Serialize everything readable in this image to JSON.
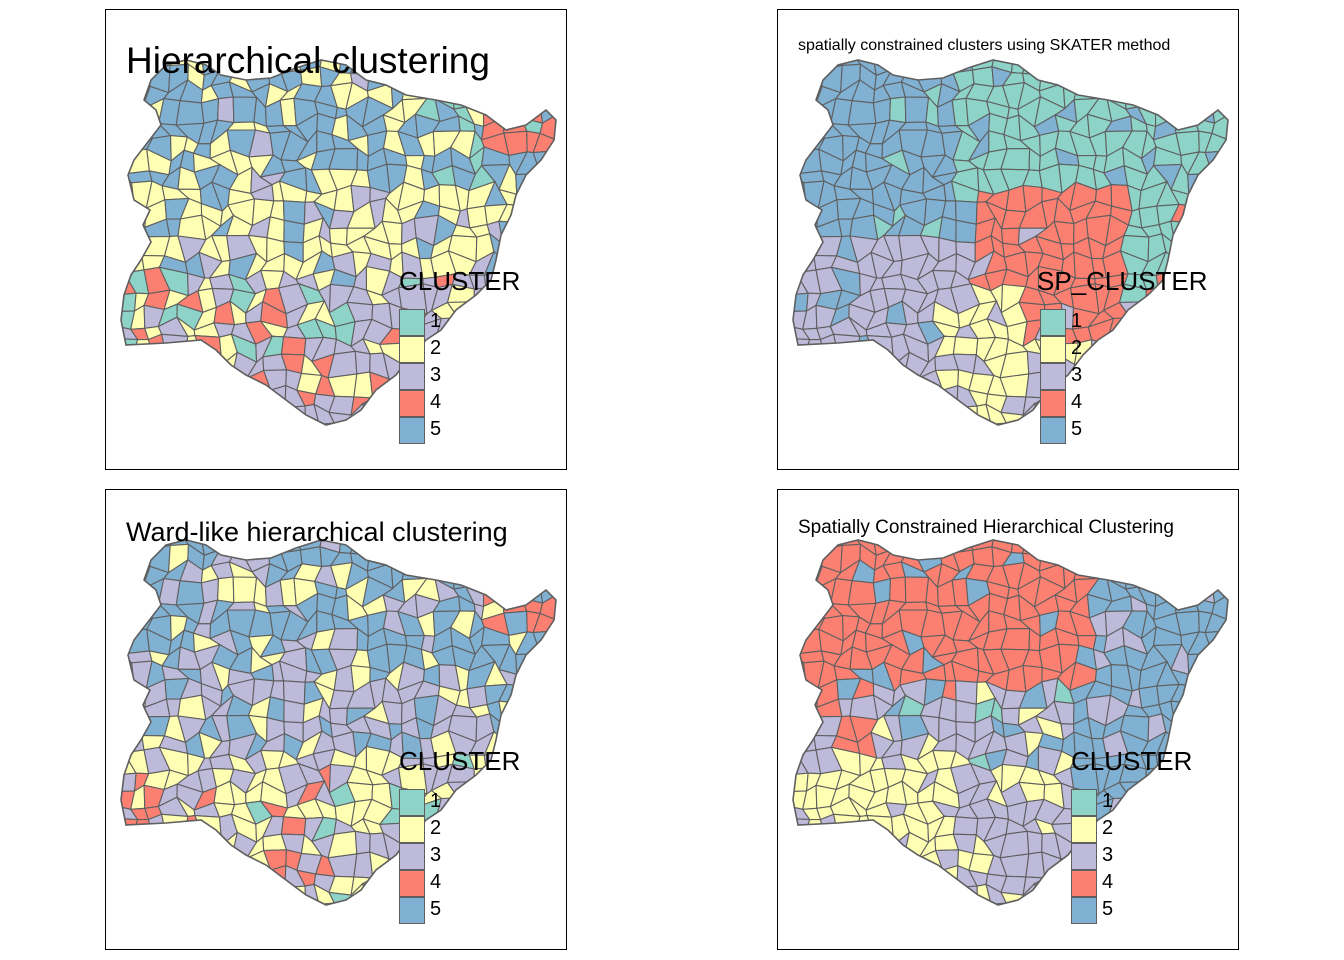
{
  "colors": {
    "1": "#8dd3c7",
    "2": "#ffffb3",
    "3": "#bebada",
    "4": "#fb8072",
    "5": "#80b1d3",
    "border": "#5f5f5f"
  },
  "maps": [
    {
      "title": "Hierarchical clustering",
      "legend_title": "CLUSTER",
      "legend_items": [
        "1",
        "2",
        "3",
        "4",
        "5"
      ],
      "pattern": "hier"
    },
    {
      "title": "spatially constrained clusters using SKATER method",
      "legend_title": "SP_CLUSTER",
      "legend_items": [
        "1",
        "2",
        "3",
        "4",
        "5"
      ],
      "pattern": "skater"
    },
    {
      "title": "Ward-like hierarchical clustering",
      "legend_title": "CLUSTER",
      "legend_items": [
        "1",
        "2",
        "3",
        "4",
        "5"
      ],
      "pattern": "ward"
    },
    {
      "title": "Spatially Constrained Hierarchical Clustering",
      "legend_title": "CLUSTER",
      "legend_items": [
        "1",
        "2",
        "3",
        "4",
        "5"
      ],
      "pattern": "hclustgeo"
    }
  ]
}
